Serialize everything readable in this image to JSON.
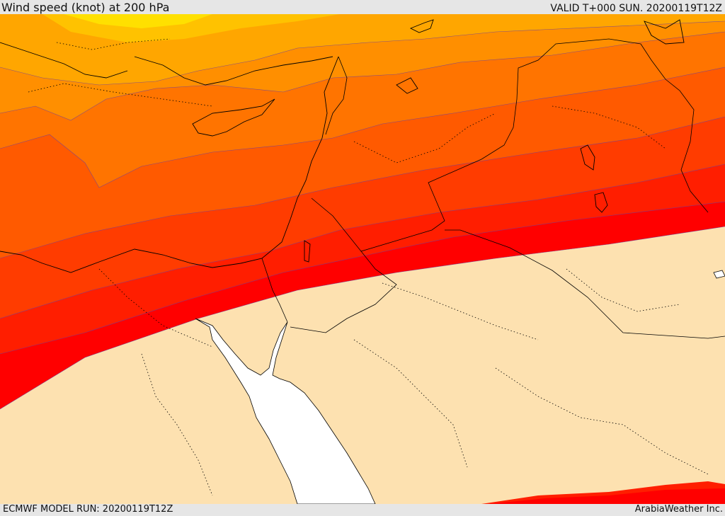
{
  "header": {
    "title": "Wind speed (knot) at 200 hPa",
    "valid": "VALID T+000 SUN. 20200119T12Z"
  },
  "footer": {
    "model_run": "ECMWF MODEL RUN: 20200119T12Z",
    "credit": "ArabiaWeather Inc."
  },
  "colors": {
    "band_low": "#fde1b0",
    "band_1": "#ff0000",
    "band_2": "#ff1e00",
    "band_3": "#ff3c00",
    "band_4": "#ff5a00",
    "band_5": "#ff7400",
    "band_6": "#ff8f00",
    "band_7": "#ffa600",
    "band_8": "#ffc200",
    "band_9": "#ffe000",
    "sea": "#ffffff"
  }
}
